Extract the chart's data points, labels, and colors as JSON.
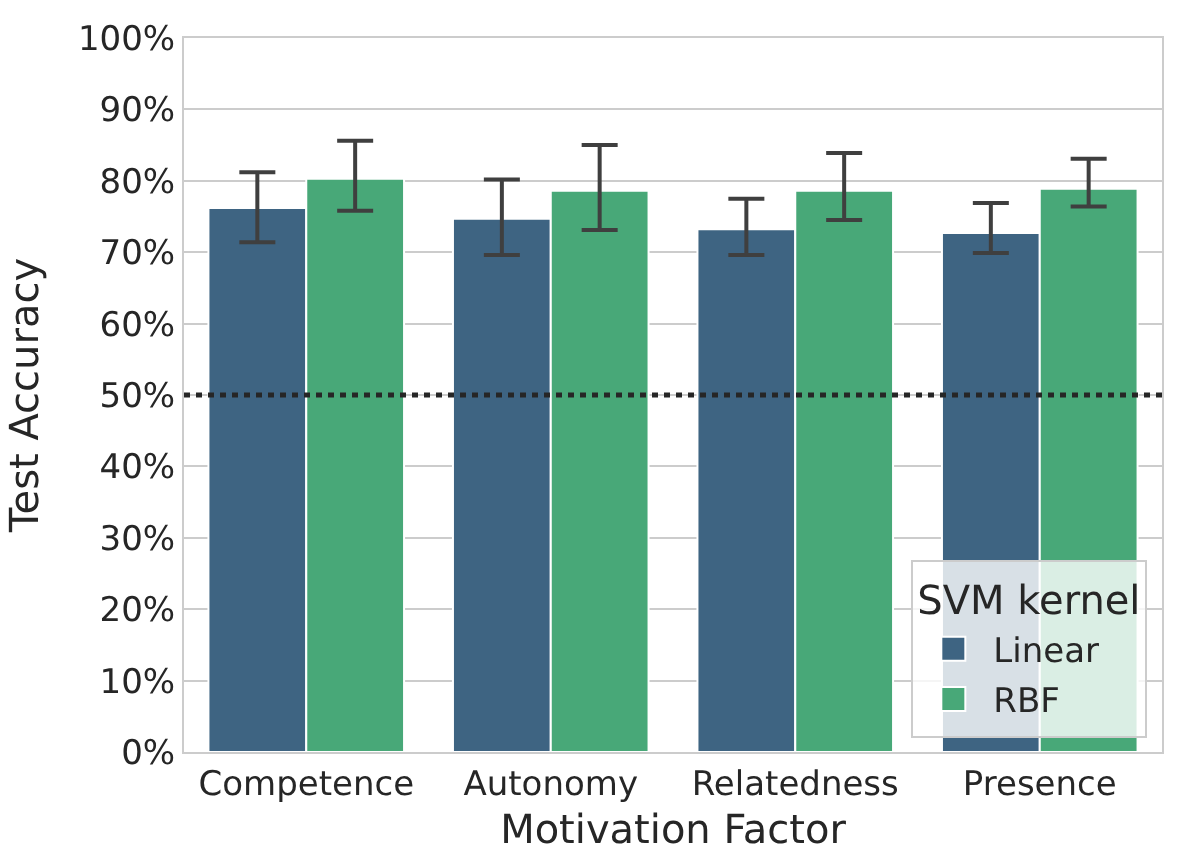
{
  "chart_data": {
    "type": "bar",
    "xlabel": "Motivation Factor",
    "ylabel": "Test Accuracy",
    "legend_title": "SVM kernel",
    "categories": [
      "Competence",
      "Autonomy",
      "Relatedness",
      "Presence"
    ],
    "series": [
      {
        "name": "Linear",
        "color": "#3e6482",
        "values": [
          76.2,
          74.7,
          73.2,
          72.7
        ],
        "errors": [
          [
            71.4,
            81.2
          ],
          [
            69.6,
            80.2
          ],
          [
            69.6,
            77.5
          ],
          [
            69.9,
            76.9
          ]
        ]
      },
      {
        "name": "RBF",
        "color": "#48a878",
        "values": [
          80.3,
          78.6,
          78.6,
          78.9
        ],
        "errors": [
          [
            75.8,
            85.6
          ],
          [
            73.1,
            85.0
          ],
          [
            74.5,
            83.9
          ],
          [
            76.4,
            83.1
          ]
        ]
      }
    ],
    "ylim": [
      0,
      100
    ],
    "yticks": [
      {
        "value": 0,
        "label": "0%"
      },
      {
        "value": 10,
        "label": "10%"
      },
      {
        "value": 20,
        "label": "20%"
      },
      {
        "value": 30,
        "label": "30%"
      },
      {
        "value": 40,
        "label": "40%"
      },
      {
        "value": 50,
        "label": "50%"
      },
      {
        "value": 60,
        "label": "60%"
      },
      {
        "value": 70,
        "label": "70%"
      },
      {
        "value": 80,
        "label": "80%"
      },
      {
        "value": 90,
        "label": "90%"
      },
      {
        "value": 100,
        "label": "100%"
      }
    ],
    "ref_lines": [
      {
        "axis": "y",
        "value": 50,
        "color": "#262626",
        "line_style": "dotted"
      }
    ],
    "grid": "y",
    "legend": "bottom right"
  }
}
